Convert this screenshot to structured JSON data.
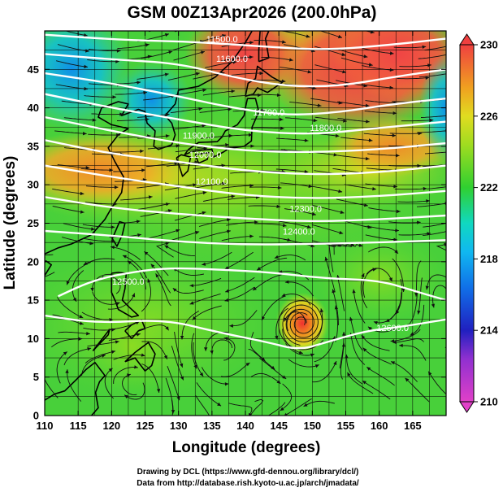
{
  "title": "GSM 00Z13Apr2026 (200.0hPa)",
  "x_axis": {
    "label": "Longitude (degrees)",
    "range": [
      110,
      170
    ],
    "ticks": [
      110,
      115,
      120,
      125,
      130,
      135,
      140,
      145,
      150,
      155,
      160,
      165
    ]
  },
  "y_axis": {
    "label": "Latitude  (degrees)",
    "range": [
      0,
      50
    ],
    "ticks": [
      0,
      5,
      10,
      15,
      20,
      25,
      30,
      35,
      40,
      45
    ]
  },
  "colorbar": {
    "ticks": [
      230,
      226,
      222,
      218,
      214,
      210
    ],
    "range": [
      210,
      230
    ],
    "colors": [
      "#e040c8",
      "#2020c0",
      "#10a0f0",
      "#10d8c0",
      "#30d030",
      "#a0dc20",
      "#f0d020",
      "#f08020",
      "#f04040"
    ]
  },
  "contour_labels": [
    {
      "text": "11500.0",
      "lon": 136.5,
      "lat": 48.5
    },
    {
      "text": "11600.0",
      "lon": 138,
      "lat": 46
    },
    {
      "text": "11700.0",
      "lon": 143.5,
      "lat": 39
    },
    {
      "text": "11800.0",
      "lon": 152,
      "lat": 37
    },
    {
      "text": "11900.0",
      "lon": 133,
      "lat": 36
    },
    {
      "text": "12000.0",
      "lon": 134,
      "lat": 33.5
    },
    {
      "text": "12100.0",
      "lon": 135,
      "lat": 30
    },
    {
      "text": "12300.0",
      "lon": 149,
      "lat": 26.5
    },
    {
      "text": "12400.0",
      "lon": 148,
      "lat": 23.5
    },
    {
      "text": "12500.0",
      "lon": 122.5,
      "lat": 17
    },
    {
      "text": "12600.0",
      "lon": 162,
      "lat": 11
    }
  ],
  "credits": {
    "line1": "Drawing by DCL (https://www.gfd-dennou.org/library/dcl/)",
    "line2": "Data from http://database.rish.kyoto-u.ac.jp/arch/jmadata/"
  },
  "chart_data": {
    "type": "heatmap",
    "title": "GSM 00Z13Apr2026 (200.0hPa)",
    "xlabel": "Longitude (degrees)",
    "ylabel": "Latitude  (degrees)",
    "xlim": [
      110,
      170
    ],
    "ylim": [
      0,
      50
    ],
    "colorbar_range": [
      210,
      230
    ],
    "grid": true,
    "overlays": [
      "streamlines",
      "height contours",
      "coastlines"
    ],
    "notable_features": [
      {
        "description": "warm maximum (cyclone core)",
        "lon": 148.5,
        "lat": 12,
        "value": 229
      }
    ]
  }
}
